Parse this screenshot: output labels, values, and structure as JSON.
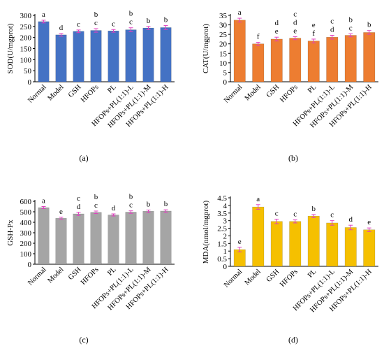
{
  "colors": {
    "a": "#4472C4",
    "b": "#ED7D31",
    "c": "#A5A5A5",
    "d": "#F5C000",
    "error_bar": "#E040C0"
  },
  "chart_data": [
    {
      "panel": "(a)",
      "type": "bar",
      "ylabel": "SOD(U/mgprot)",
      "ylim": [
        0,
        300
      ],
      "yticks": [
        0,
        50,
        100,
        150,
        200,
        250,
        300
      ],
      "grid": false,
      "categories": [
        "Normal",
        "Model",
        "GSH",
        "HFOPs",
        "PL",
        "HFOPs+PL(1:1)-L",
        "HFOPs+PL(1:1)-M",
        "HFOPs+PL(1:1)-H"
      ],
      "values": [
        272,
        212,
        228,
        232,
        230,
        235,
        243,
        245
      ],
      "errors": [
        6,
        6,
        6,
        8,
        6,
        9,
        7,
        9
      ],
      "letters": [
        [
          "a"
        ],
        [
          "d"
        ],
        [
          "c"
        ],
        [
          "b",
          "c"
        ],
        [
          "c"
        ],
        [
          "b",
          "c"
        ],
        [
          "b"
        ],
        [
          "b"
        ]
      ]
    },
    {
      "panel": "(b)",
      "type": "bar",
      "ylabel": "CAT(U/mgprot)",
      "ylim": [
        0,
        35
      ],
      "yticks": [
        0,
        5,
        10,
        15,
        20,
        25,
        30,
        35
      ],
      "grid": false,
      "categories": [
        "Normal",
        "Model",
        "GSH",
        "HFOPs",
        "PL",
        "HFOPs+PL(1:1)-L",
        "HFOPs+PL(1:1)-M",
        "HFOPs+PL(1:1)-H"
      ],
      "values": [
        32.5,
        20.0,
        22.5,
        23.0,
        21.5,
        23.5,
        24.5,
        26.0
      ],
      "errors": [
        1.0,
        0.8,
        1.0,
        0.8,
        1.0,
        1.0,
        0.8,
        1.0
      ],
      "letters": [
        [
          "a"
        ],
        [
          "f"
        ],
        [
          "d",
          "e"
        ],
        [
          "c",
          "d",
          "e"
        ],
        [
          "e",
          "f"
        ],
        [
          "c",
          "d"
        ],
        [
          "b",
          "c"
        ],
        [
          "b"
        ]
      ]
    },
    {
      "panel": "(c)",
      "type": "bar",
      "ylabel": "GSH-Px",
      "ylim": [
        0,
        600
      ],
      "yticks": [
        0,
        100,
        200,
        300,
        400,
        500,
        600
      ],
      "grid": false,
      "categories": [
        "Normal",
        "Model",
        "GSH",
        "HFOPs",
        "PL",
        "HFOPs+PL(1:1)-L",
        "HFOPs+PL(1:1)-M",
        "HFOPs+PL(1:1)-H"
      ],
      "values": [
        540,
        438,
        480,
        495,
        470,
        497,
        505,
        507
      ],
      "errors": [
        10,
        10,
        15,
        12,
        10,
        12,
        12,
        12
      ],
      "letters": [
        [
          "a"
        ],
        [
          "e"
        ],
        [
          "c",
          "d"
        ],
        [
          "b",
          "c"
        ],
        [
          "d"
        ],
        [
          "b",
          "c"
        ],
        [
          "b"
        ],
        [
          "b"
        ]
      ]
    },
    {
      "panel": "(d)",
      "type": "bar",
      "ylabel": "MDA(nmol/mgprot)",
      "ylim": [
        0,
        4.5
      ],
      "yticks": [
        0,
        0.5,
        1,
        1.5,
        2,
        2.5,
        3,
        3.5,
        4,
        4.5
      ],
      "grid": false,
      "categories": [
        "Normal",
        "Model",
        "GSH",
        "HFOPs",
        "PL",
        "HFOPs+PL(1:1)-L",
        "HFOPs+PL(1:1)-M",
        "HFOPs+PL(1:1)-H"
      ],
      "values": [
        1.1,
        3.9,
        2.95,
        2.95,
        3.3,
        2.85,
        2.55,
        2.4
      ],
      "errors": [
        0.15,
        0.15,
        0.15,
        0.1,
        0.1,
        0.15,
        0.15,
        0.12
      ],
      "letters": [
        [
          "e"
        ],
        [
          "a"
        ],
        [
          "c"
        ],
        [
          "c"
        ],
        [
          "b"
        ],
        [
          "c"
        ],
        [
          "d"
        ],
        [
          "e"
        ]
      ]
    }
  ]
}
